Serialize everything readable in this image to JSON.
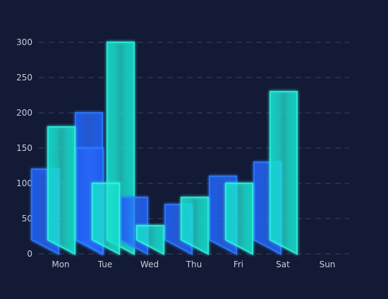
{
  "chart_data": {
    "type": "bar",
    "categories": [
      "Mon",
      "Tue",
      "Wed",
      "Thu",
      "Fri",
      "Sat",
      "Sun"
    ],
    "series": [
      {
        "values": [
          120,
          150,
          80,
          70,
          110,
          130,
          null
        ],
        "color": "#2a6cff"
      },
      {
        "values": [
          180,
          100,
          40,
          80,
          100,
          230,
          null
        ],
        "color": "#19e6d4"
      },
      {
        "values": [
          200,
          null,
          null,
          null,
          null,
          null,
          null
        ],
        "color": "#2a6cff"
      },
      {
        "values": [
          300,
          null,
          null,
          null,
          null,
          null,
          null
        ],
        "color": "#19e6d4"
      }
    ],
    "ylim": [
      0,
      300
    ],
    "yticks": [
      0,
      50,
      100,
      150,
      200,
      250,
      300
    ],
    "grid": true,
    "colors": {
      "background": "#131a35",
      "grid": "#3a4260",
      "tick_label": "#c7ccdb",
      "blue": "#2a6cff",
      "cyan": "#19e6d4"
    }
  }
}
